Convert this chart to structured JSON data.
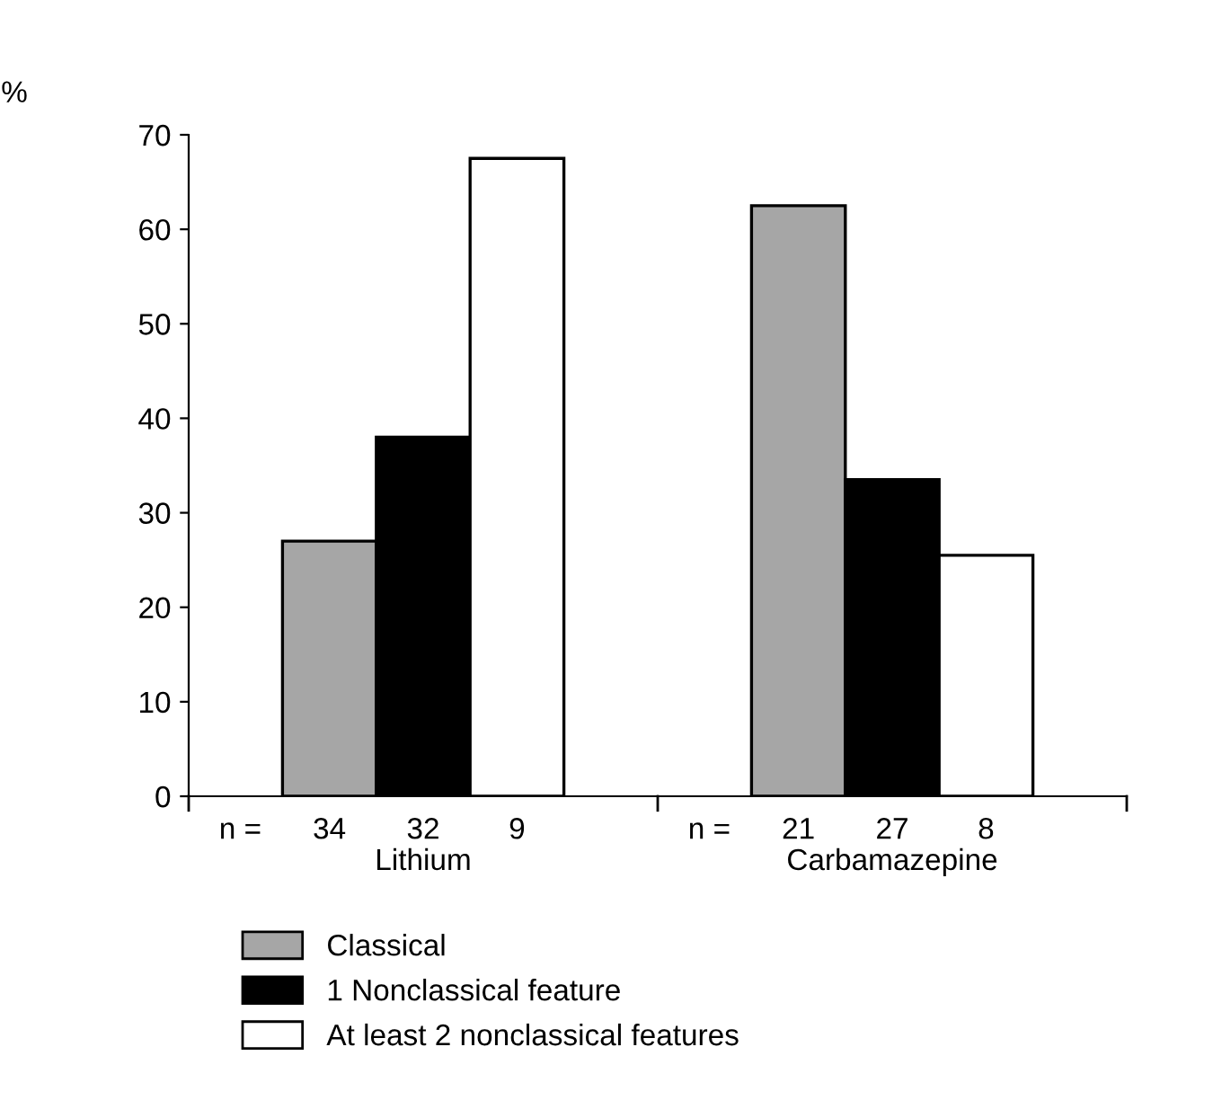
{
  "chart_data": {
    "type": "bar",
    "ylabel": "%",
    "categories": [
      "Lithium",
      "Carbamazepine"
    ],
    "series": [
      {
        "name": "Classical",
        "color": "#a6a6a6",
        "values": [
          27,
          62.5
        ]
      },
      {
        "name": "1 Nonclassical feature",
        "color": "#000000",
        "values": [
          38,
          33.5
        ]
      },
      {
        "name": "At least 2 nonclassical features",
        "color": "#ffffff",
        "values": [
          67.5,
          25.5
        ]
      }
    ],
    "annotations": [
      "n =",
      "34",
      "32",
      "9",
      "n =",
      "21",
      "27",
      "8"
    ],
    "ylim": [
      0,
      70
    ],
    "yticks": [
      0,
      10,
      20,
      30,
      40,
      50,
      60,
      70
    ],
    "grid": false,
    "legend": "bottom left"
  }
}
